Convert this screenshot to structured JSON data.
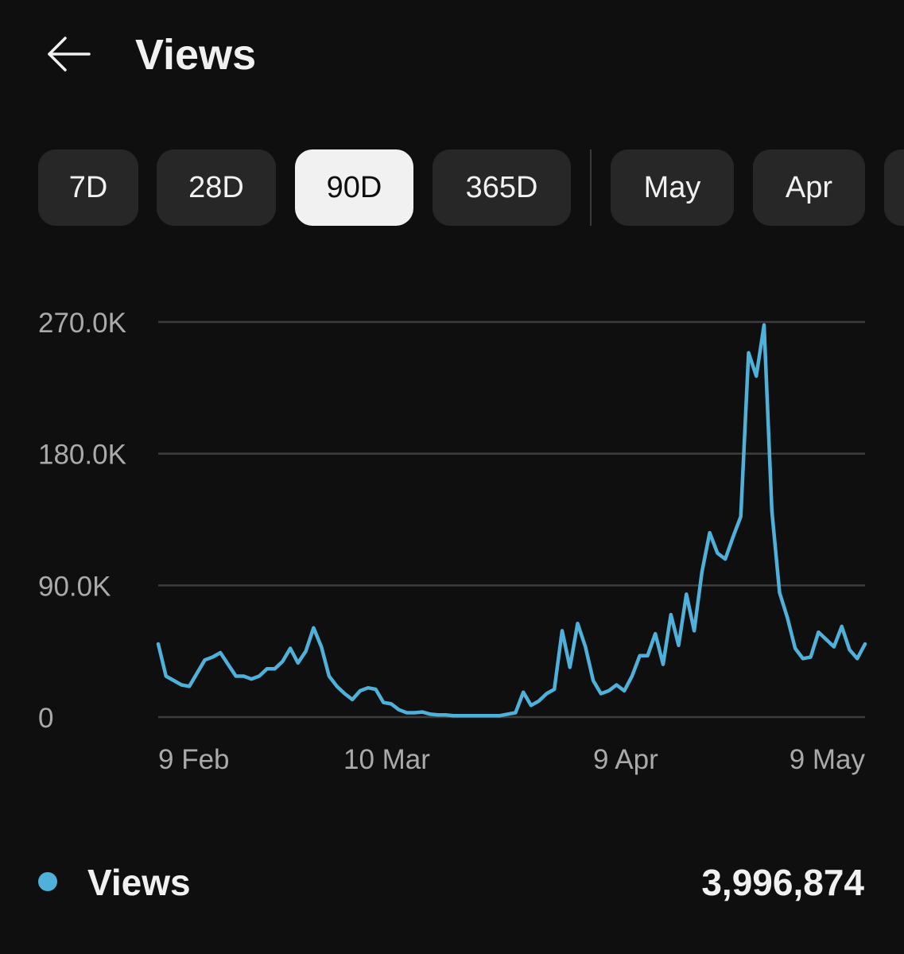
{
  "header": {
    "title": "Views",
    "back_icon": "arrow-left-icon"
  },
  "chips": [
    {
      "label": "7D",
      "selected": false
    },
    {
      "label": "28D",
      "selected": false
    },
    {
      "label": "90D",
      "selected": true
    },
    {
      "label": "365D",
      "selected": false
    },
    {
      "label": "May",
      "selected": false
    },
    {
      "label": "Apr",
      "selected": false
    }
  ],
  "colors": {
    "background": "#0f0f0f",
    "series": "#4fb0d9",
    "grid": "#3d3d3d",
    "tick_text": "#aaaaaa"
  },
  "chart_data": {
    "type": "line",
    "title": "",
    "xlabel": "",
    "ylabel": "",
    "ylim": [
      0,
      270000
    ],
    "y_ticks": [
      0,
      90000,
      180000,
      270000
    ],
    "y_tick_labels": [
      "0",
      "90.0K",
      "180.0K",
      "270.0K"
    ],
    "x_tick_labels": [
      "9 Feb",
      "10 Mar",
      "9 Apr",
      "9 May"
    ],
    "grid": true,
    "series": [
      {
        "name": "Views",
        "values": [
          50000,
          28000,
          25000,
          22000,
          21000,
          30000,
          39000,
          41000,
          44000,
          36000,
          28000,
          28000,
          26000,
          28000,
          33000,
          33000,
          38000,
          47000,
          37000,
          45000,
          61000,
          48000,
          28000,
          21000,
          16000,
          12000,
          18000,
          20000,
          19000,
          10000,
          9000,
          5000,
          3000,
          3000,
          3500,
          2000,
          1500,
          1500,
          1000,
          1000,
          1000,
          1000,
          1000,
          1000,
          1000,
          2000,
          3000,
          17000,
          8000,
          11000,
          16000,
          19000,
          59000,
          34000,
          64000,
          48000,
          25000,
          16000,
          18000,
          22000,
          18000,
          28000,
          42000,
          42000,
          57000,
          36000,
          70000,
          49000,
          84000,
          59000,
          99000,
          126000,
          112000,
          108000,
          123000,
          137000,
          249000,
          233000,
          268000,
          141000,
          85000,
          68000,
          47000,
          40000,
          41000,
          58000,
          53000,
          48000,
          62000,
          46000,
          40000,
          50000
        ]
      }
    ]
  },
  "legend": {
    "label": "Views",
    "total": "3,996,874"
  }
}
